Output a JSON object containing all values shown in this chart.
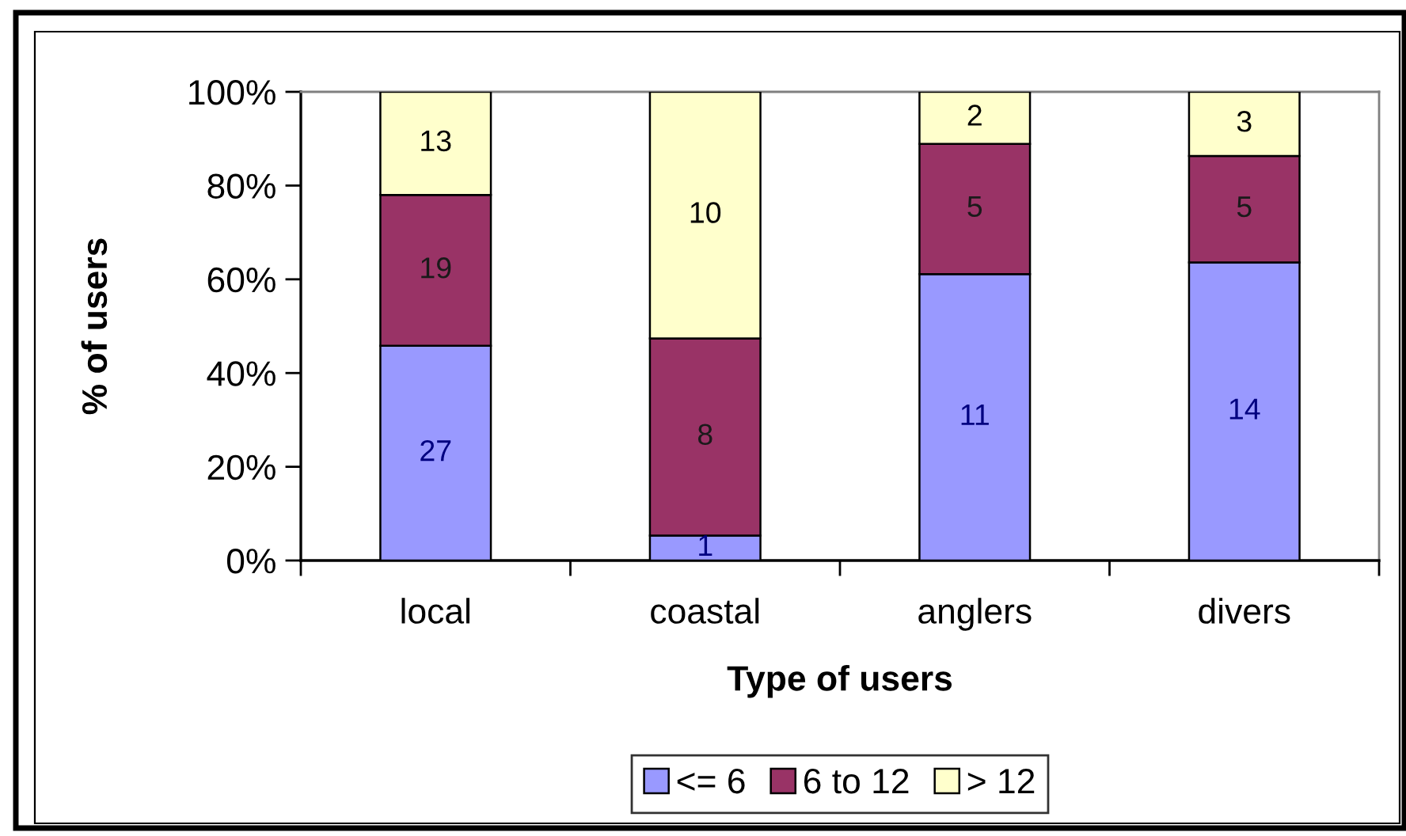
{
  "chart_data": {
    "type": "bar",
    "stacked": true,
    "categories": [
      "local",
      "coastal",
      "anglers",
      "divers"
    ],
    "xlabel": "Type of users",
    "ylabel": "% of users",
    "ylim": [
      0,
      100
    ],
    "yticks": [
      {
        "value": 0,
        "label": "0%"
      },
      {
        "value": 20,
        "label": "20%"
      },
      {
        "value": 40,
        "label": "40%"
      },
      {
        "value": 60,
        "label": "60%"
      },
      {
        "value": 80,
        "label": "80%"
      },
      {
        "value": 100,
        "label": "100%"
      }
    ],
    "series": [
      {
        "name": "<= 6",
        "color": "#9999ff",
        "values": [
          45.8,
          5.3,
          61.1,
          63.6
        ]
      },
      {
        "name": "6 to 12",
        "color": "#993366",
        "values": [
          32.2,
          42.1,
          27.8,
          22.7
        ]
      },
      {
        "name": "> 12",
        "color": "#ffffcc",
        "values": [
          22.0,
          52.6,
          11.1,
          13.7
        ]
      }
    ],
    "annotations": [
      "27",
      "19",
      "13",
      "1",
      "8",
      "10",
      "11",
      "5",
      "2",
      "14",
      "5",
      "3"
    ],
    "legend": "bottom",
    "grid": false
  }
}
